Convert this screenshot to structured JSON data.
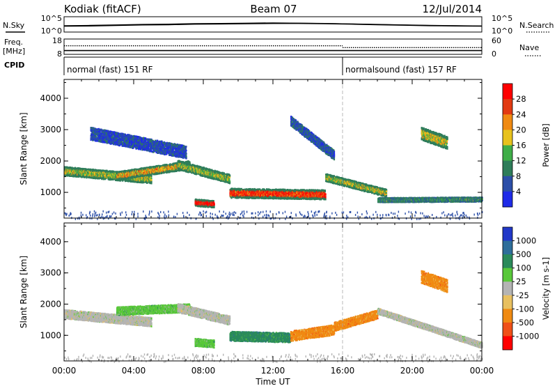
{
  "header": {
    "station": "Kodiak (fitACF)",
    "beam": "Beam 07",
    "date": "12/Jul/2014"
  },
  "noise_panel": {
    "left_label": "N.Sky",
    "right_label": "N.Search",
    "top_tick": "10^5",
    "bottom_tick": "10^0",
    "sky_level_log10": [
      1.8,
      1.9,
      2.1,
      2.3,
      2.4,
      2.6,
      2.7,
      2.8,
      2.9,
      2.9,
      2.8,
      2.6,
      2.4,
      2.2,
      2.0,
      1.9,
      1.8
    ],
    "search_level_log10": [
      2.0,
      2.1,
      2.3,
      2.5,
      2.6,
      2.8,
      2.9,
      3.0,
      3.1,
      3.0,
      2.9,
      2.7,
      2.5,
      2.3,
      2.1,
      2.0,
      1.9
    ]
  },
  "freq_panel": {
    "left_label_line1": "Freq.",
    "left_label_line2": "[MHz]",
    "right_label": "Nave",
    "left_ticks": [
      "18",
      "8"
    ],
    "right_ticks": [
      "60",
      "0"
    ],
    "freq_mhz": 10.2,
    "nave_before": 34,
    "nave_after": 26
  },
  "cpid_panel": {
    "label": "CPID",
    "modes": [
      {
        "text": "normal (fast) 151 RF",
        "start_hour": 0
      },
      {
        "text": "normalsound (fast) 157 RF",
        "start_hour": 16
      }
    ]
  },
  "chart_data": [
    {
      "type": "heatmap",
      "quantity": "Power",
      "ylabel": "Slant Range [km]",
      "ylim": [
        180,
        4600
      ],
      "yticks": [
        "1000",
        "2000",
        "3000",
        "4000"
      ],
      "colorbar_label": "Power [dB]",
      "colorbar_ticks": [
        "4",
        "8",
        "12",
        "16",
        "20",
        "24",
        "28"
      ],
      "colorbar_range": [
        0,
        32
      ],
      "colors": [
        "#1f2be8",
        "#2c4fa8",
        "#2e7d5a",
        "#3fae48",
        "#e8c21d",
        "#f08a12",
        "#e23a12",
        "#ff0000"
      ],
      "echo_bands": [
        {
          "t0": 0.0,
          "t1": 5.0,
          "r0": 1700,
          "r1": 1450,
          "w": 140,
          "level": 0.5
        },
        {
          "t0": 3.0,
          "t1": 7.2,
          "r0": 1550,
          "r1": 1900,
          "w": 130,
          "level": 0.65
        },
        {
          "t0": 6.5,
          "t1": 9.5,
          "r0": 1900,
          "r1": 1450,
          "w": 140,
          "level": 0.45
        },
        {
          "t0": 9.5,
          "t1": 15.0,
          "r0": 1000,
          "r1": 950,
          "w": 150,
          "level": 0.9
        },
        {
          "t0": 7.5,
          "t1": 8.6,
          "r0": 700,
          "r1": 650,
          "w": 110,
          "level": 1.0
        },
        {
          "t0": 15.0,
          "t1": 18.5,
          "r0": 1500,
          "r1": 1000,
          "w": 120,
          "level": 0.5
        },
        {
          "t0": 18.0,
          "t1": 24.0,
          "r0": 780,
          "r1": 800,
          "w": 70,
          "level": 0.3
        },
        {
          "t0": 20.5,
          "t1": 22.0,
          "r0": 2900,
          "r1": 2600,
          "w": 200,
          "level": 0.55
        },
        {
          "t0": 1.5,
          "t1": 7.0,
          "r0": 2900,
          "r1": 2300,
          "w": 200,
          "level": 0.1
        },
        {
          "t0": 13.0,
          "t1": 15.5,
          "r0": 3300,
          "r1": 2200,
          "w": 150,
          "level": 0.15
        }
      ]
    },
    {
      "type": "heatmap",
      "quantity": "Velocity",
      "ylabel": "Slant Range [km]",
      "ylim": [
        180,
        4600
      ],
      "yticks": [
        "1000",
        "2000",
        "3000",
        "4000"
      ],
      "colorbar_label": "Velocity [m s-1]",
      "colorbar_ticks": [
        "1000",
        "500",
        "100",
        "25",
        "-25",
        "-100",
        "-500",
        "-1000"
      ],
      "colors": [
        "#2138c8",
        "#2e6e9a",
        "#2a8a5a",
        "#59c83a",
        "#b4b4b4",
        "#e8c060",
        "#f08a12",
        "#f05018",
        "#ff0000"
      ],
      "echo_bands": [
        {
          "t0": 0.0,
          "t1": 5.0,
          "r0": 1700,
          "r1": 1450,
          "w": 140,
          "class": 4
        },
        {
          "t0": 3.0,
          "t1": 7.2,
          "r0": 1800,
          "r1": 1900,
          "w": 130,
          "class": 3
        },
        {
          "t0": 6.5,
          "t1": 9.5,
          "r0": 1900,
          "r1": 1500,
          "w": 140,
          "class": 4
        },
        {
          "t0": 9.5,
          "t1": 13.0,
          "r0": 1000,
          "r1": 950,
          "w": 150,
          "class": 2
        },
        {
          "t0": 13.0,
          "t1": 15.5,
          "r0": 1000,
          "r1": 1200,
          "w": 160,
          "class": 6
        },
        {
          "t0": 15.5,
          "t1": 18.0,
          "r0": 1300,
          "r1": 1700,
          "w": 140,
          "class": 6
        },
        {
          "t0": 7.5,
          "t1": 8.6,
          "r0": 800,
          "r1": 750,
          "w": 120,
          "class": 3
        },
        {
          "t0": 18.0,
          "t1": 24.0,
          "r0": 1800,
          "r1": 700,
          "w": 90,
          "class": 4
        },
        {
          "t0": 20.5,
          "t1": 22.0,
          "r0": 2900,
          "r1": 2600,
          "w": 200,
          "class": 6
        }
      ]
    }
  ],
  "time_axis": {
    "label": "Time UT",
    "start_hour": 0,
    "end_hour": 24,
    "ticks": [
      "00:00",
      "04:00",
      "08:00",
      "12:00",
      "16:00",
      "20:00",
      "00:00"
    ]
  }
}
